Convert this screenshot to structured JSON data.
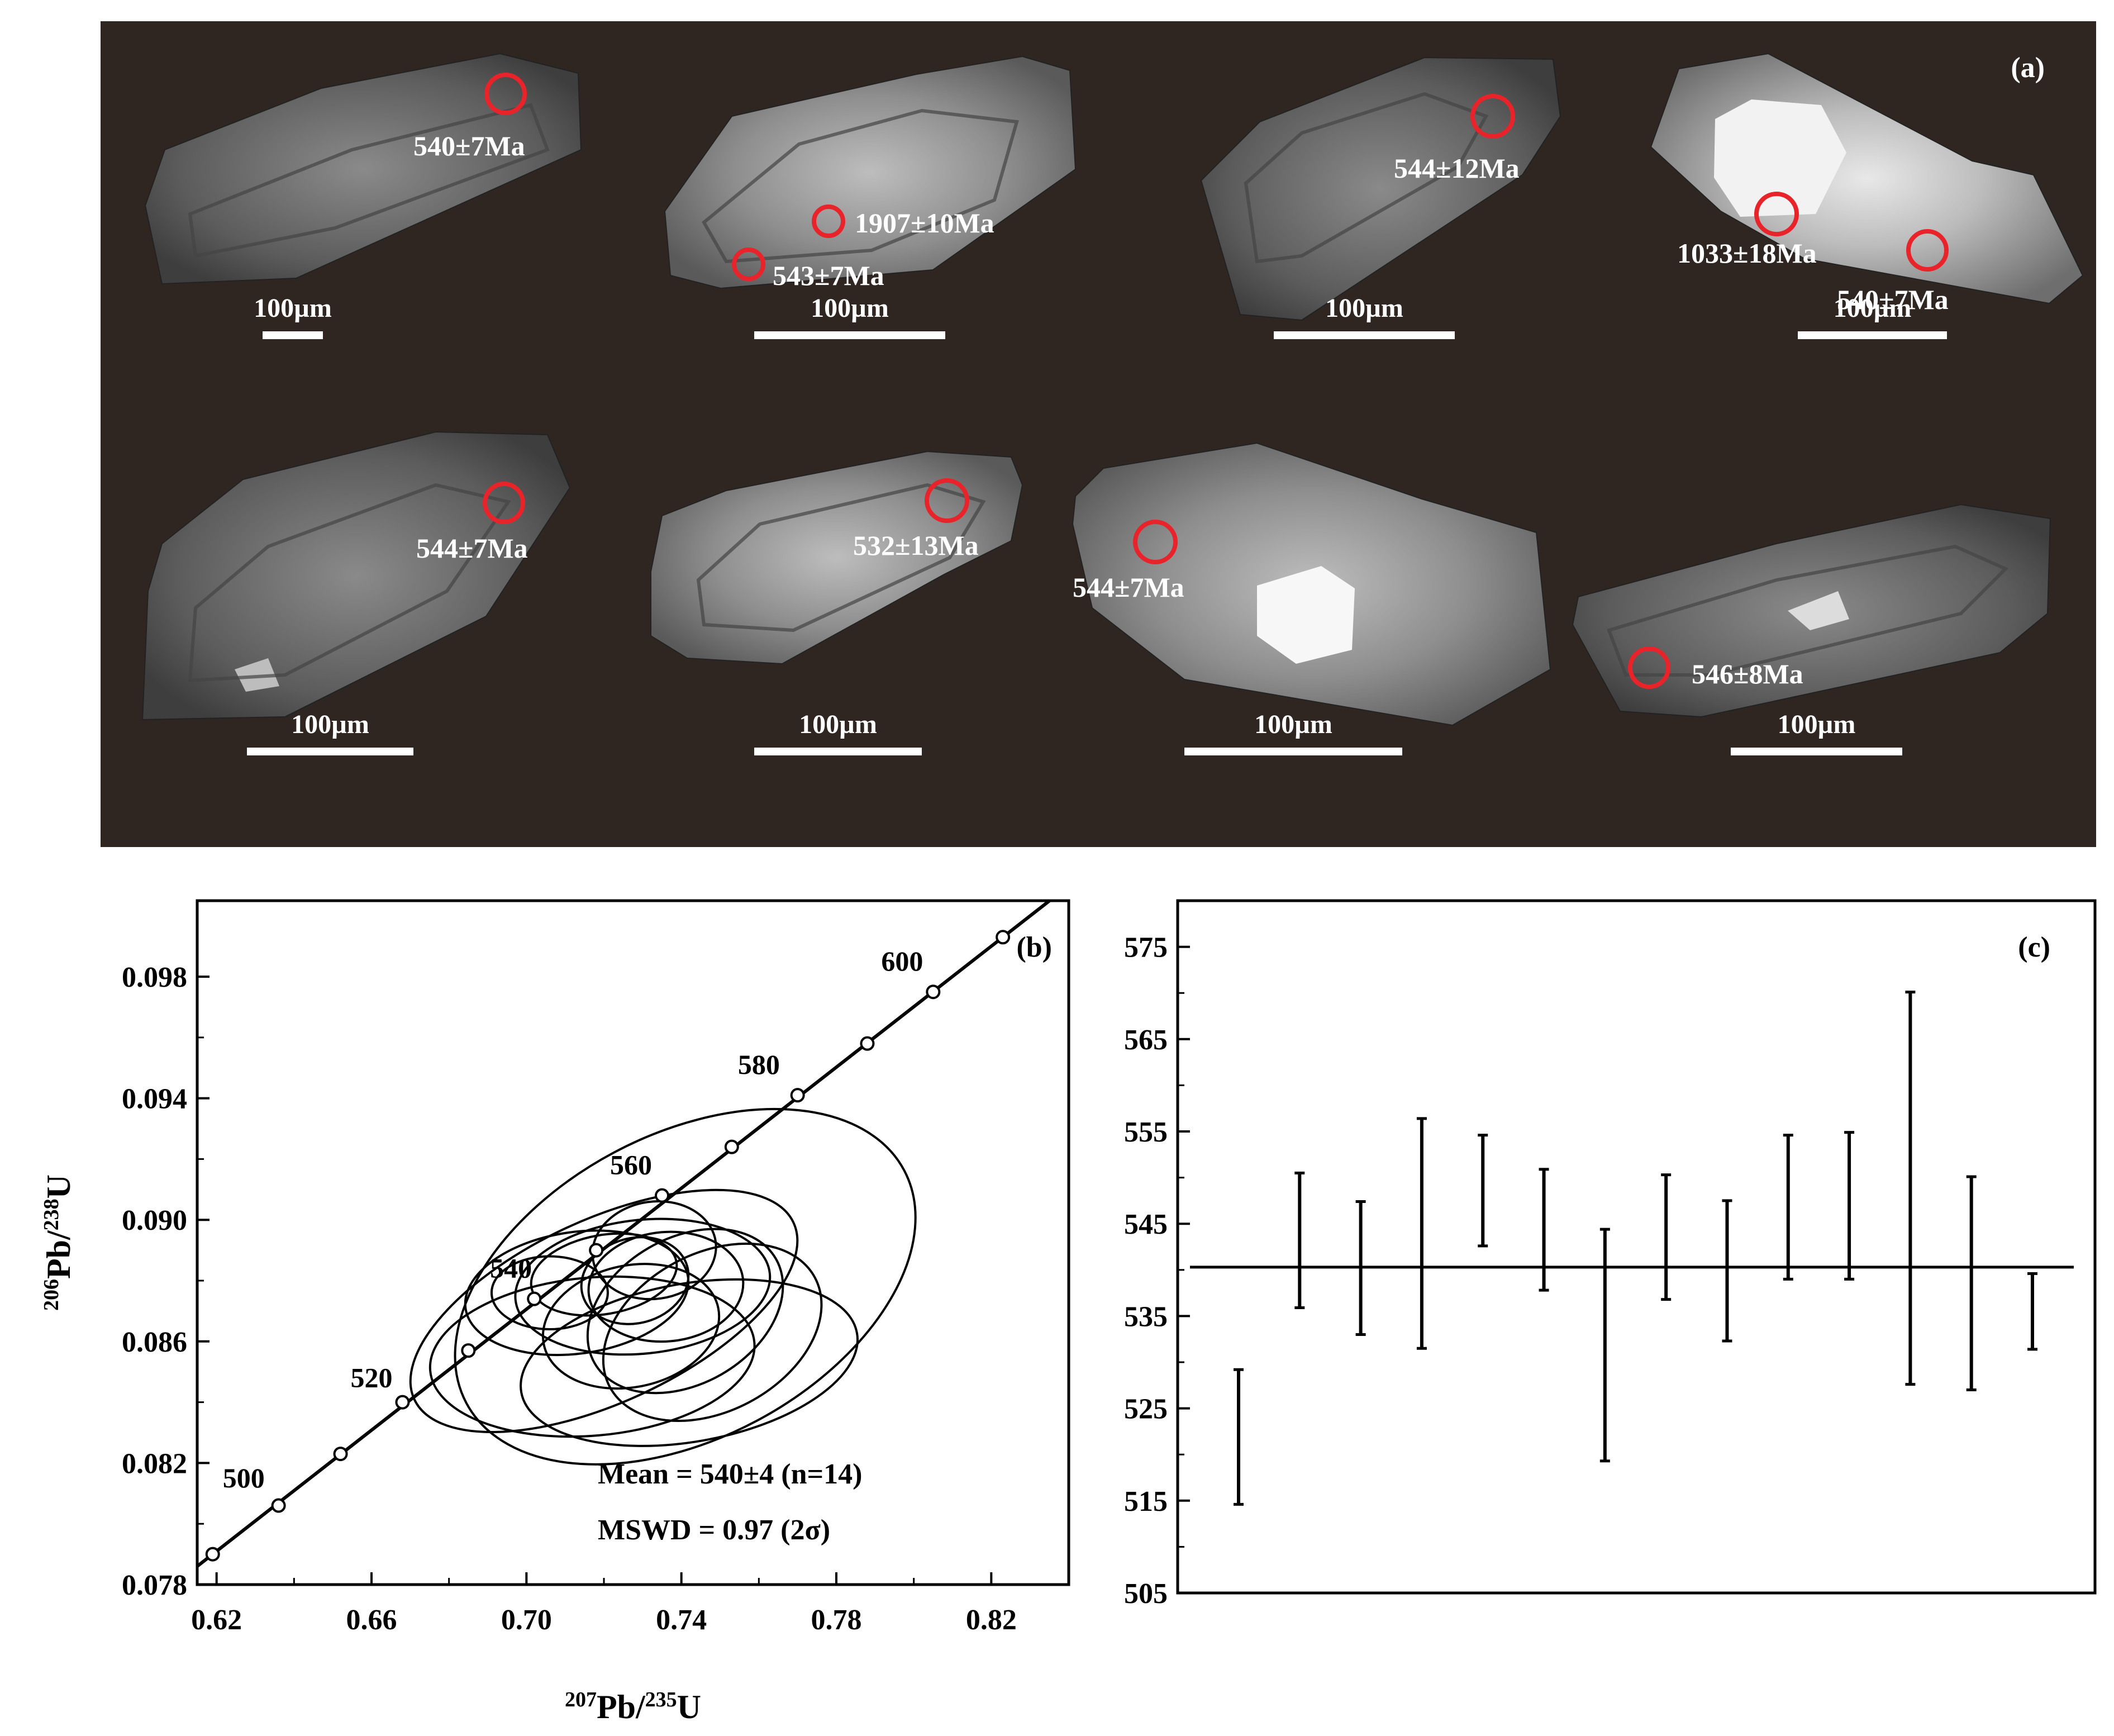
{
  "panel_a": {
    "label": "(a)",
    "grains": [
      {
        "scale_label": "100µm",
        "spots": [
          {
            "age": "540±7Ma"
          }
        ]
      },
      {
        "scale_label": "100µm",
        "spots": [
          {
            "age": "1907±10Ma"
          },
          {
            "age": "543±7Ma"
          }
        ]
      },
      {
        "scale_label": "100µm",
        "spots": [
          {
            "age": "544±12Ma"
          }
        ]
      },
      {
        "scale_label": "100µm",
        "spots": [
          {
            "age": "1033±18Ma"
          },
          {
            "age": "540±7Ma"
          }
        ]
      },
      {
        "scale_label": "100µm",
        "spots": [
          {
            "age": "544±7Ma"
          }
        ]
      },
      {
        "scale_label": "100µm",
        "spots": [
          {
            "age": "532±13Ma"
          }
        ]
      },
      {
        "scale_label": "100µm",
        "spots": [
          {
            "age": "544±7Ma"
          }
        ]
      },
      {
        "scale_label": "100µm",
        "spots": [
          {
            "age": "546±8Ma"
          }
        ]
      }
    ],
    "colors": {
      "background": "#2f2622",
      "spot": "#e8232a",
      "text": "#ffffff"
    }
  },
  "chart_data": [
    {
      "type": "scatter",
      "panel_label": "(b)",
      "xlabel_parts": {
        "sup1": "207",
        "base1": "Pb/",
        "sup2": "235",
        "base2": "U"
      },
      "ylabel_parts": {
        "sup1": "206",
        "base1": "Pb/",
        "sup2": "238",
        "base2": "U"
      },
      "xlim": [
        0.615,
        0.84
      ],
      "ylim": [
        0.078,
        0.1005
      ],
      "xticks": [
        "0.62",
        "0.66",
        "0.70",
        "0.74",
        "0.78",
        "0.82"
      ],
      "yticks": [
        "0.078",
        "0.082",
        "0.086",
        "0.090",
        "0.094",
        "0.098"
      ],
      "concordia_points": [
        {
          "age": 500,
          "x": 0.619,
          "y": 0.079
        },
        {
          "age": 510,
          "x": 0.636,
          "y": 0.0806
        },
        {
          "age": 520,
          "x": 0.652,
          "y": 0.0823
        },
        {
          "age": 530,
          "x": 0.668,
          "y": 0.084
        },
        {
          "age": 540,
          "x": 0.685,
          "y": 0.0857
        },
        {
          "age": 550,
          "x": 0.702,
          "y": 0.0874
        },
        {
          "age": 560,
          "x": 0.718,
          "y": 0.089
        },
        {
          "age": 570,
          "x": 0.735,
          "y": 0.0908
        },
        {
          "age": 580,
          "x": 0.753,
          "y": 0.0924
        },
        {
          "age": 590,
          "x": 0.77,
          "y": 0.0941
        },
        {
          "age": 600,
          "x": 0.788,
          "y": 0.0958
        },
        {
          "age": 610,
          "x": 0.805,
          "y": 0.0975
        },
        {
          "age": 620,
          "x": 0.823,
          "y": 0.0993
        }
      ],
      "age_labels": [
        {
          "text": "500",
          "x": 0.627,
          "y": 0.0812
        },
        {
          "text": "520",
          "x": 0.66,
          "y": 0.0845
        },
        {
          "text": "540",
          "x": 0.696,
          "y": 0.0881
        },
        {
          "text": "560",
          "x": 0.727,
          "y": 0.0915
        },
        {
          "text": "580",
          "x": 0.76,
          "y": 0.0948
        },
        {
          "text": "600",
          "x": 0.797,
          "y": 0.0982
        }
      ],
      "ellipses": [
        {
          "cx": 0.72,
          "cy": 0.087,
          "rx": 0.054,
          "ry": 0.003,
          "angle_deg": 25
        },
        {
          "cx": 0.741,
          "cy": 0.0878,
          "rx": 0.064,
          "ry": 0.005,
          "angle_deg": 28
        },
        {
          "cx": 0.713,
          "cy": 0.0876,
          "rx": 0.029,
          "ry": 0.002,
          "angle_deg": 8
        },
        {
          "cx": 0.73,
          "cy": 0.0878,
          "rx": 0.033,
          "ry": 0.0022,
          "angle_deg": 6
        },
        {
          "cx": 0.72,
          "cy": 0.0882,
          "rx": 0.019,
          "ry": 0.0013,
          "angle_deg": 10
        },
        {
          "cx": 0.741,
          "cy": 0.087,
          "rx": 0.027,
          "ry": 0.0024,
          "angle_deg": 30
        },
        {
          "cx": 0.736,
          "cy": 0.0878,
          "rx": 0.02,
          "ry": 0.0018,
          "angle_deg": 5
        },
        {
          "cx": 0.728,
          "cy": 0.088,
          "rx": 0.014,
          "ry": 0.0014,
          "angle_deg": 15
        },
        {
          "cx": 0.717,
          "cy": 0.0855,
          "rx": 0.042,
          "ry": 0.0026,
          "angle_deg": 5
        },
        {
          "cx": 0.742,
          "cy": 0.0853,
          "rx": 0.044,
          "ry": 0.0026,
          "angle_deg": 10
        },
        {
          "cx": 0.748,
          "cy": 0.0863,
          "rx": 0.03,
          "ry": 0.0026,
          "angle_deg": 28
        },
        {
          "cx": 0.727,
          "cy": 0.0865,
          "rx": 0.023,
          "ry": 0.002,
          "angle_deg": 12
        },
        {
          "cx": 0.706,
          "cy": 0.0876,
          "rx": 0.015,
          "ry": 0.0012,
          "angle_deg": 0
        },
        {
          "cx": 0.733,
          "cy": 0.089,
          "rx": 0.016,
          "ry": 0.0016,
          "angle_deg": 8
        }
      ],
      "annotations": [
        "Mean = 540±4 (n=14)",
        "MSWD = 0.97 (2σ)"
      ]
    },
    {
      "type": "errorbar",
      "panel_label": "(c)",
      "ylim": [
        505,
        580
      ],
      "yticks": [
        "505",
        "515",
        "525",
        "535",
        "545",
        "555",
        "565",
        "575"
      ],
      "mean_line": 540.3,
      "ranges": [
        [
          514.6,
          529.2
        ],
        [
          535.9,
          550.5
        ],
        [
          533.0,
          547.4
        ],
        [
          531.5,
          556.4
        ],
        [
          542.6,
          554.6
        ],
        [
          537.8,
          550.9
        ],
        [
          519.3,
          544.4
        ],
        [
          536.8,
          550.3
        ],
        [
          532.3,
          547.5
        ],
        [
          539.0,
          554.6
        ],
        [
          539.0,
          554.9
        ],
        [
          527.6,
          570.1
        ],
        [
          527.0,
          550.1
        ],
        [
          531.4,
          539.6
        ]
      ]
    }
  ]
}
